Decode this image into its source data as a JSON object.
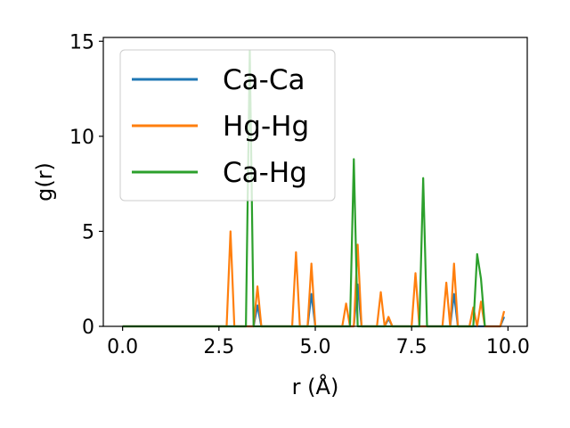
{
  "chart_data": {
    "type": "line",
    "xlabel": "r (Å)",
    "ylabel": "g(r)",
    "xlim": [
      -0.5,
      10.5
    ],
    "ylim": [
      0,
      15.2
    ],
    "xticks": [
      0.0,
      2.5,
      5.0,
      7.5,
      10.0
    ],
    "xtick_labels": [
      "0.0",
      "2.5",
      "5.0",
      "7.5",
      "10.0"
    ],
    "yticks": [
      0,
      5,
      10,
      15
    ],
    "ytick_labels": [
      "0",
      "5",
      "10",
      "15"
    ],
    "grid": false,
    "legend_position": "top-left",
    "series": [
      {
        "name": "Ca-Ca",
        "color": "#1f77b4",
        "x": [
          0.0,
          3.3,
          3.4,
          3.5,
          3.6,
          4.8,
          4.9,
          5.0,
          6.0,
          6.1,
          6.2,
          6.8,
          6.9,
          7.0,
          8.5,
          8.6,
          8.7,
          9.8,
          9.9
        ],
        "y": [
          0,
          0,
          0,
          1.1,
          0,
          0,
          1.7,
          0,
          0,
          2.2,
          0,
          0,
          0.4,
          0,
          0,
          1.7,
          0,
          0,
          0.5
        ]
      },
      {
        "name": "Hg-Hg",
        "color": "#ff7f0e",
        "x": [
          0.0,
          2.7,
          2.8,
          2.9,
          3.4,
          3.5,
          3.6,
          4.4,
          4.5,
          4.6,
          4.8,
          4.9,
          5.0,
          5.7,
          5.8,
          5.9,
          6.0,
          6.1,
          6.2,
          6.6,
          6.7,
          6.8,
          6.9,
          7.0,
          7.1,
          7.5,
          7.6,
          7.7,
          8.3,
          8.4,
          8.5,
          8.6,
          8.7,
          9.0,
          9.1,
          9.2,
          9.3,
          9.4,
          9.8,
          9.9
        ],
        "y": [
          0,
          0,
          5.0,
          0,
          0,
          2.1,
          0,
          0,
          3.9,
          0,
          0,
          3.3,
          0,
          0,
          1.2,
          0,
          0,
          4.3,
          0,
          0,
          1.8,
          0,
          0.5,
          0,
          0,
          0,
          2.8,
          0,
          0,
          2.3,
          0,
          3.3,
          0,
          0,
          1.0,
          0,
          1.3,
          0,
          0,
          0.8
        ]
      },
      {
        "name": "Ca-Hg",
        "color": "#2ca02c",
        "x": [
          0.0,
          3.2,
          3.3,
          3.4,
          5.9,
          6.0,
          6.1,
          7.7,
          7.8,
          7.9,
          9.0,
          9.1,
          9.2,
          9.3,
          9.4
        ],
        "y": [
          0,
          0,
          14.5,
          0,
          0,
          8.8,
          0,
          0,
          7.8,
          0,
          0,
          0,
          3.8,
          2.5,
          0
        ]
      }
    ]
  }
}
